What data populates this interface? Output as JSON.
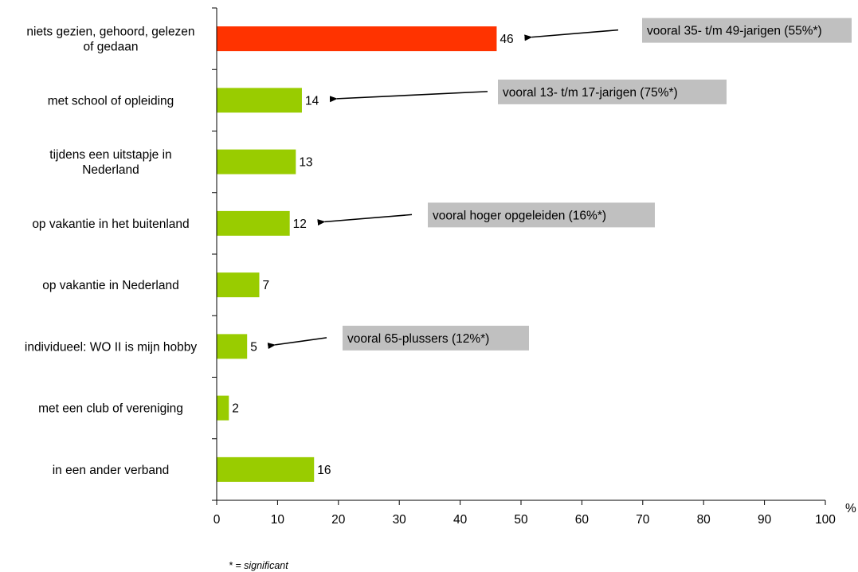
{
  "chart_data": {
    "type": "bar",
    "orientation": "horizontal",
    "categories": [
      [
        "niets gezien, gehoord, gelezen",
        "of gedaan"
      ],
      [
        "met school of opleiding"
      ],
      [
        "tijdens een uitstapje in",
        "Nederland"
      ],
      [
        "op vakantie in het buitenland"
      ],
      [
        "op vakantie in Nederland"
      ],
      [
        "individueel: WO II is mijn hobby"
      ],
      [
        "met een club of vereniging"
      ],
      [
        "in een ander verband"
      ]
    ],
    "values": [
      46,
      14,
      13,
      12,
      7,
      5,
      2,
      16
    ],
    "value_labels": [
      "46",
      "14",
      "13",
      "12",
      "7",
      "5",
      "2",
      "16"
    ],
    "bar_colors": [
      "#ff3300",
      "#99cc00",
      "#99cc00",
      "#99cc00",
      "#99cc00",
      "#99cc00",
      "#99cc00",
      "#99cc00"
    ],
    "xlim": [
      0,
      100
    ],
    "x_ticks": [
      0,
      10,
      20,
      30,
      40,
      50,
      60,
      70,
      80,
      90,
      100
    ],
    "x_tick_labels": [
      "0",
      "10",
      "20",
      "30",
      "40",
      "50",
      "60",
      "70",
      "80",
      "90",
      "100"
    ],
    "x_unit": "%",
    "grid": false,
    "legend": "none",
    "annotations": [
      {
        "category_index": 0,
        "text": "vooral 35- t/m 49-jarigen (55%*)"
      },
      {
        "category_index": 1,
        "text": "vooral 13- t/m 17-jarigen (75%*)"
      },
      {
        "category_index": 3,
        "text": "vooral hoger opgeleiden (16%*)"
      },
      {
        "category_index": 5,
        "text": "vooral 65-plussers (12%*)"
      }
    ],
    "callout_color": "#c0c0c0",
    "footnote": "* = significant"
  }
}
